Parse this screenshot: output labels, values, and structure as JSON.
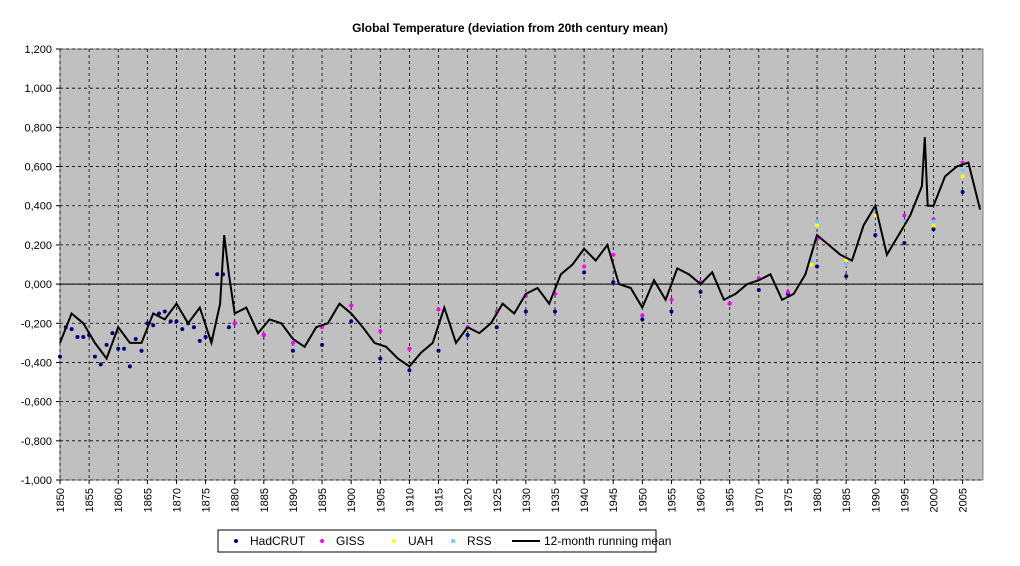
{
  "chart_data": {
    "type": "scatter",
    "title": "Global Temperature (deviation from 20th century mean)",
    "xlabel": "",
    "ylabel": "",
    "xlim": [
      1850,
      2008.5
    ],
    "ylim": [
      -1.0,
      1.2
    ],
    "y_ticks": [
      "-1,000",
      "-0,800",
      "-0,600",
      "-0,400",
      "-0,200",
      "0,000",
      "0,200",
      "0,400",
      "0,600",
      "0,800",
      "1,000",
      "1,200"
    ],
    "y_tick_values": [
      -1.0,
      -0.8,
      -0.6,
      -0.4,
      -0.2,
      0.0,
      0.2,
      0.4,
      0.6,
      0.8,
      1.0,
      1.2
    ],
    "x_ticks": [
      "1850",
      "1855",
      "1860",
      "1865",
      "1870",
      "1875",
      "1880",
      "1885",
      "1890",
      "1895",
      "1900",
      "1905",
      "1910",
      "1915",
      "1920",
      "1925",
      "1930",
      "1935",
      "1940",
      "1945",
      "1950",
      "1955",
      "1960",
      "1965",
      "1970",
      "1975",
      "1980",
      "1985",
      "1990",
      "1995",
      "2000",
      "2005"
    ],
    "x_tick_values": [
      1850,
      1855,
      1860,
      1865,
      1870,
      1875,
      1880,
      1885,
      1890,
      1895,
      1900,
      1905,
      1910,
      1915,
      1920,
      1925,
      1930,
      1935,
      1940,
      1945,
      1950,
      1955,
      1960,
      1965,
      1970,
      1975,
      1980,
      1985,
      1990,
      1995,
      2000,
      2005
    ],
    "grid": true,
    "legend_position": "bottom",
    "background_color": "#c0c0c0",
    "series": [
      {
        "name": "HadCRUT",
        "kind": "scatter",
        "color": "#000080",
        "x": [
          1850,
          1851,
          1852,
          1853,
          1854,
          1855,
          1856,
          1857,
          1858,
          1859,
          1860,
          1861,
          1862,
          1863,
          1864,
          1865,
          1866,
          1867,
          1868,
          1869,
          1870,
          1871,
          1872,
          1873,
          1874,
          1875,
          1876,
          1877,
          1878,
          1879,
          1880,
          1885,
          1890,
          1895,
          1900,
          1905,
          1910,
          1915,
          1920,
          1925,
          1930,
          1935,
          1940,
          1945,
          1950,
          1955,
          1960,
          1965,
          1970,
          1975,
          1980,
          1985,
          1990,
          1995,
          2000,
          2005
        ],
        "y": [
          -0.37,
          -0.22,
          -0.23,
          -0.27,
          -0.27,
          -0.26,
          -0.37,
          -0.41,
          -0.31,
          -0.25,
          -0.33,
          -0.33,
          -0.42,
          -0.28,
          -0.34,
          -0.2,
          -0.21,
          -0.15,
          -0.14,
          -0.19,
          -0.19,
          -0.23,
          -0.2,
          -0.22,
          -0.29,
          -0.27,
          -0.28,
          0.05,
          0.05,
          -0.22,
          -0.2,
          -0.26,
          -0.34,
          -0.31,
          -0.19,
          -0.38,
          -0.44,
          -0.34,
          -0.26,
          -0.22,
          -0.14,
          -0.14,
          0.06,
          0.01,
          -0.18,
          -0.14,
          -0.04,
          -0.1,
          -0.03,
          -0.05,
          0.09,
          0.04,
          0.25,
          0.21,
          0.28,
          0.47
        ]
      },
      {
        "name": "GISS",
        "kind": "scatter",
        "color": "#ff00ff",
        "x": [
          1880,
          1885,
          1890,
          1895,
          1900,
          1905,
          1910,
          1915,
          1920,
          1925,
          1930,
          1935,
          1940,
          1945,
          1950,
          1955,
          1960,
          1965,
          1970,
          1975,
          1980,
          1985,
          1990,
          1995,
          2000,
          2005
        ],
        "y": [
          -0.2,
          -0.26,
          -0.3,
          -0.22,
          -0.11,
          -0.24,
          -0.33,
          -0.13,
          -0.22,
          -0.14,
          -0.06,
          -0.05,
          0.09,
          0.15,
          -0.16,
          -0.08,
          0.01,
          -0.1,
          0.03,
          -0.04,
          0.23,
          0.11,
          0.35,
          0.35,
          0.33,
          0.62
        ]
      },
      {
        "name": "UAH",
        "kind": "scatter",
        "color": "#ffff00",
        "x": [
          1979,
          1980,
          1985,
          1990,
          1995,
          2000,
          2005
        ],
        "y": [
          0.1,
          0.3,
          0.12,
          0.35,
          0.3,
          0.3,
          0.55
        ]
      },
      {
        "name": "RSS",
        "kind": "scatter",
        "color": "#66ccff",
        "x": [
          1979,
          1980,
          1985,
          1990,
          1995,
          2000,
          2005
        ],
        "y": [
          0.12,
          0.32,
          0.1,
          0.38,
          0.32,
          0.32,
          0.58
        ]
      },
      {
        "name": "12-month running mean",
        "kind": "line",
        "color": "#000000",
        "x": [
          1850,
          1852,
          1854,
          1856,
          1858,
          1860,
          1862,
          1864,
          1866,
          1868,
          1870,
          1872,
          1874,
          1876,
          1877.5,
          1878.2,
          1879,
          1880,
          1882,
          1884,
          1886,
          1888,
          1890,
          1892,
          1894,
          1896,
          1898,
          1900,
          1902,
          1904,
          1906,
          1908,
          1910,
          1912,
          1914,
          1916,
          1918,
          1920,
          1922,
          1924,
          1926,
          1928,
          1930,
          1932,
          1934,
          1936,
          1938,
          1940,
          1942,
          1944,
          1946,
          1948,
          1950,
          1952,
          1954,
          1956,
          1958,
          1960,
          1962,
          1964,
          1966,
          1968,
          1970,
          1972,
          1974,
          1976,
          1978,
          1980,
          1982,
          1984,
          1986,
          1988,
          1990,
          1992,
          1994,
          1996,
          1998,
          1998.5,
          1999,
          2000,
          2002,
          2004,
          2006,
          2008
        ],
        "y": [
          -0.3,
          -0.15,
          -0.2,
          -0.3,
          -0.38,
          -0.22,
          -0.3,
          -0.3,
          -0.15,
          -0.18,
          -0.1,
          -0.2,
          -0.12,
          -0.3,
          -0.1,
          0.25,
          0.05,
          -0.15,
          -0.12,
          -0.25,
          -0.18,
          -0.2,
          -0.28,
          -0.32,
          -0.22,
          -0.2,
          -0.1,
          -0.15,
          -0.22,
          -0.3,
          -0.32,
          -0.38,
          -0.42,
          -0.35,
          -0.3,
          -0.12,
          -0.3,
          -0.22,
          -0.25,
          -0.2,
          -0.1,
          -0.15,
          -0.05,
          -0.02,
          -0.1,
          0.05,
          0.1,
          0.18,
          0.12,
          0.2,
          0.0,
          -0.02,
          -0.12,
          0.02,
          -0.08,
          0.08,
          0.05,
          0.0,
          0.06,
          -0.08,
          -0.05,
          0.0,
          0.02,
          0.05,
          -0.08,
          -0.05,
          0.05,
          0.25,
          0.2,
          0.15,
          0.12,
          0.3,
          0.4,
          0.15,
          0.25,
          0.35,
          0.5,
          0.75,
          0.4,
          0.4,
          0.55,
          0.6,
          0.62,
          0.38
        ]
      }
    ]
  }
}
